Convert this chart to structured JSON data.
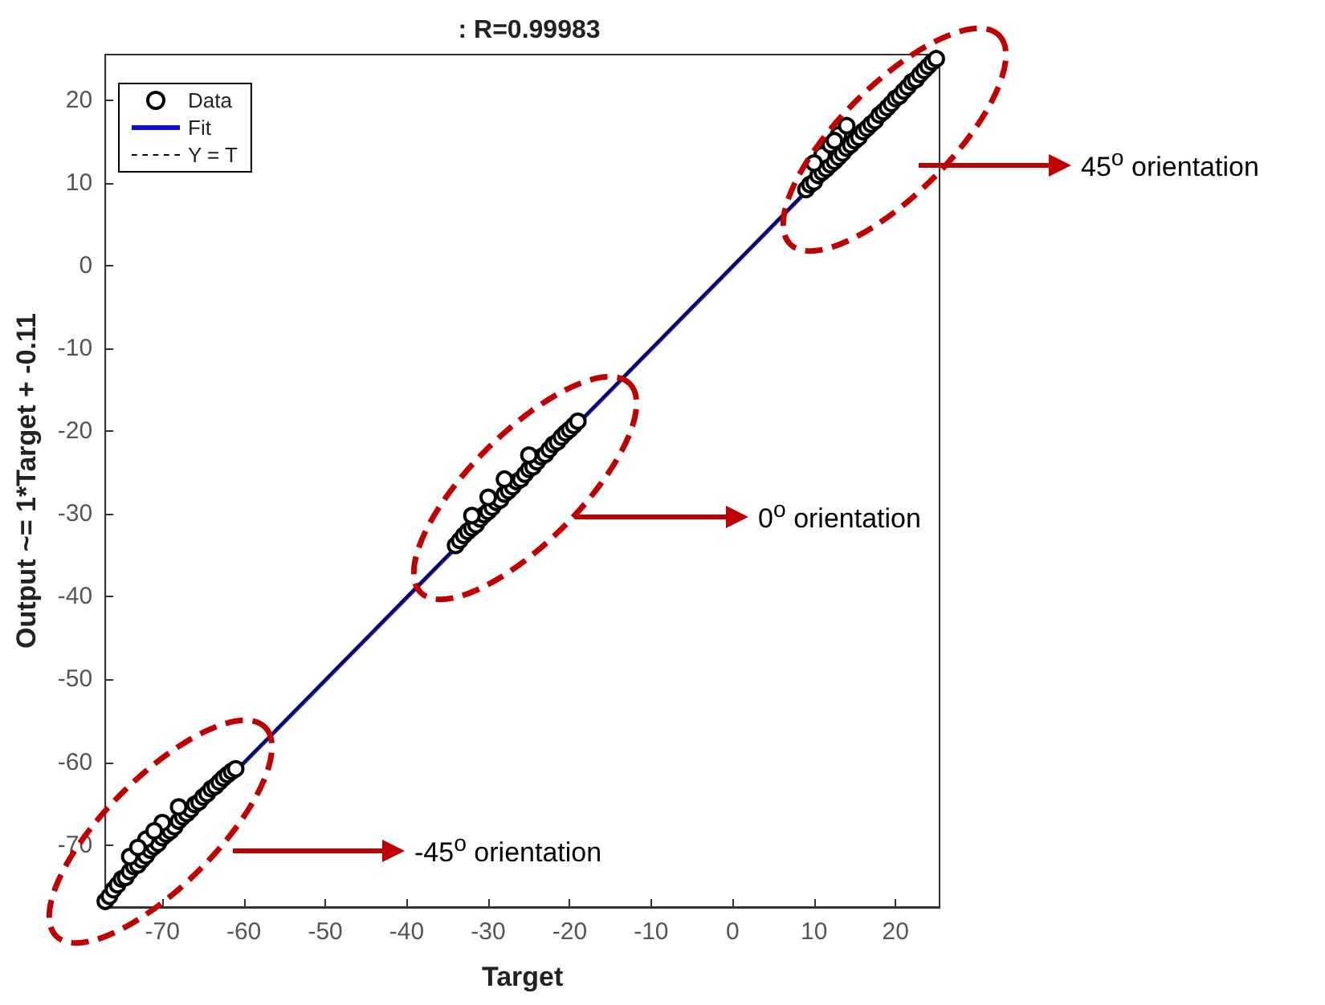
{
  "chart_data": {
    "type": "scatter",
    "title": ": R=0.99983",
    "xlabel": "Target",
    "ylabel": "Output ~= 1*Target + -0.11",
    "xlim": [
      -77,
      25.4
    ],
    "ylim": [
      -77.5,
      25.5
    ],
    "xticks": [
      -70,
      -60,
      -50,
      -40,
      -30,
      -20,
      -10,
      0,
      10,
      20
    ],
    "yticks": [
      -70,
      -60,
      -50,
      -40,
      -30,
      -20,
      -10,
      0,
      10,
      20
    ],
    "grid": false,
    "legend": "top left",
    "series": [
      {
        "name": "Data",
        "type": "scatter",
        "marker": "circle",
        "color": "#000000",
        "x": [
          -77,
          -76.5,
          -76,
          -75.5,
          -75,
          -74.5,
          -74,
          -73.5,
          -73,
          -72.5,
          -72,
          -71.5,
          -71,
          -70.5,
          -70,
          -69.5,
          -69,
          -68.5,
          -68,
          -67.5,
          -67,
          -66.5,
          -66,
          -65.5,
          -65,
          -64.5,
          -64,
          -63.5,
          -63,
          -62.5,
          -62,
          -61.5,
          -61,
          -74,
          -72,
          -70,
          -73,
          -71,
          -68,
          -34,
          -33.5,
          -33,
          -32.5,
          -32,
          -31.5,
          -31,
          -30.5,
          -30,
          -29.5,
          -29,
          -28.5,
          -28,
          -27.5,
          -27,
          -26.5,
          -26,
          -25.5,
          -25,
          -24.5,
          -24,
          -23.5,
          -23,
          -22.5,
          -22,
          -21.5,
          -21,
          -20.5,
          -20,
          -19.5,
          -19,
          -30,
          -28,
          -25,
          -32,
          9,
          9.5,
          10,
          10.5,
          11,
          11.5,
          12,
          12.5,
          13,
          13.5,
          14,
          14.5,
          15,
          15.5,
          16,
          16.5,
          17,
          17.5,
          18,
          18.5,
          19,
          19.5,
          20,
          20.5,
          21,
          21.5,
          22,
          22.5,
          23,
          23.5,
          24,
          24.5,
          25,
          11,
          12,
          13,
          10,
          14,
          12.5
        ],
        "values": [
          -76.8,
          -76.2,
          -75.4,
          -74.8,
          -74.1,
          -73.9,
          -73.2,
          -72.6,
          -72.4,
          -71.8,
          -71.3,
          -70.6,
          -70.2,
          -69.8,
          -69.1,
          -68.7,
          -68.3,
          -67.8,
          -67.1,
          -66.6,
          -66.2,
          -65.7,
          -65.1,
          -64.8,
          -64.2,
          -63.8,
          -63.2,
          -62.9,
          -62.4,
          -61.9,
          -61.5,
          -61.1,
          -60.8,
          -71.4,
          -69.3,
          -67.3,
          -70.3,
          -68.3,
          -65.4,
          -33.8,
          -33.2,
          -32.6,
          -32.1,
          -31.7,
          -31.3,
          -30.6,
          -30.1,
          -29.7,
          -29.2,
          -28.6,
          -28.3,
          -27.6,
          -27.2,
          -26.7,
          -26.1,
          -25.8,
          -25.2,
          -24.6,
          -24.3,
          -23.7,
          -23.1,
          -22.8,
          -22.2,
          -21.6,
          -21.3,
          -20.7,
          -20.2,
          -19.8,
          -19.3,
          -18.8,
          -28,
          -25.8,
          -22.9,
          -30.2,
          9.2,
          9.8,
          10.1,
          10.9,
          11.3,
          11.7,
          12.2,
          12.6,
          13.1,
          13.6,
          14.2,
          14.6,
          15.1,
          15.5,
          16.2,
          16.6,
          17.1,
          17.5,
          18.2,
          18.6,
          19.1,
          19.6,
          20.2,
          20.5,
          21.1,
          21.6,
          22.2,
          22.5,
          23.1,
          23.6,
          24.1,
          24.6,
          25.0,
          13.4,
          14.6,
          15.8,
          12.4,
          16.9,
          15.1
        ]
      },
      {
        "name": "Fit",
        "type": "line",
        "marker": "none",
        "color": "#1010cc",
        "line_style": "solid",
        "x": [
          -77,
          25.4
        ],
        "values": [
          -77.1,
          25.3
        ]
      },
      {
        "name": "Y = T",
        "type": "line",
        "marker": "none",
        "color": "#000000",
        "line_style": "dotted",
        "x": [
          -77,
          25.4
        ],
        "values": [
          -77,
          25.4
        ]
      }
    ],
    "annotations": [
      "45$^{o}$ orientation",
      "0$^{o}$ orientation",
      "-45$^{o}$ orientation"
    ]
  }
}
